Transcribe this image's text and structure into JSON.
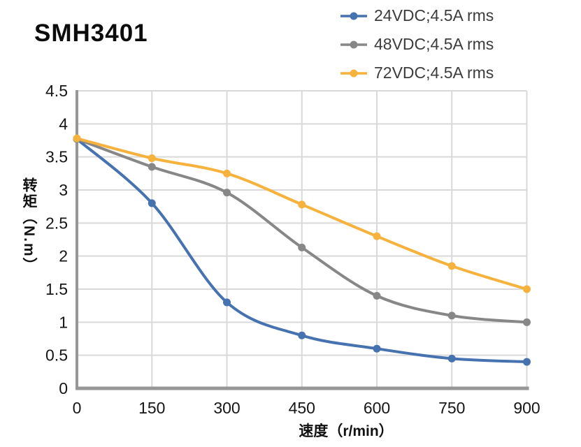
{
  "title": "SMH3401",
  "legend": {
    "items": [
      {
        "label": "24VDC;4.5A rms",
        "color": "#4672B0"
      },
      {
        "label": "48VDC;4.5A rms",
        "color": "#878787"
      },
      {
        "label": "72VDC;4.5A rms",
        "color": "#F6B23C"
      }
    ]
  },
  "chart_data": {
    "type": "line",
    "title": "SMH3401",
    "x": [
      0,
      150,
      300,
      450,
      600,
      750,
      900
    ],
    "series": [
      {
        "name": "24VDC;4.5A rms",
        "color": "#4672B0",
        "values": [
          3.77,
          2.8,
          1.3,
          0.8,
          0.6,
          0.45,
          0.4
        ]
      },
      {
        "name": "48VDC;4.5A rms",
        "color": "#878787",
        "values": [
          3.77,
          3.35,
          2.96,
          2.13,
          1.4,
          1.1,
          1.0
        ]
      },
      {
        "name": "72VDC;4.5A rms",
        "color": "#F6B23C",
        "values": [
          3.78,
          3.48,
          3.25,
          2.78,
          2.3,
          1.85,
          1.5
        ]
      }
    ],
    "xlabel": "速度（r/min）",
    "ylabel": "转矩（N.m）",
    "xlim": [
      0,
      900
    ],
    "ylim": [
      0,
      4.5
    ],
    "x_ticks": [
      0,
      150,
      300,
      450,
      600,
      750,
      900
    ],
    "y_ticks": [
      0,
      0.5,
      1,
      1.5,
      2,
      2.5,
      3,
      3.5,
      4,
      4.5
    ],
    "grid": true,
    "legend_position": "top-right",
    "marker": "circle",
    "line_smoothing": true
  },
  "style": {
    "grid_color": "#D9D9D9",
    "axis_color": "#979797",
    "tick_text_color": "#161616",
    "legend_text_color": "#3C3C3C",
    "background": "#FFFFFF"
  }
}
